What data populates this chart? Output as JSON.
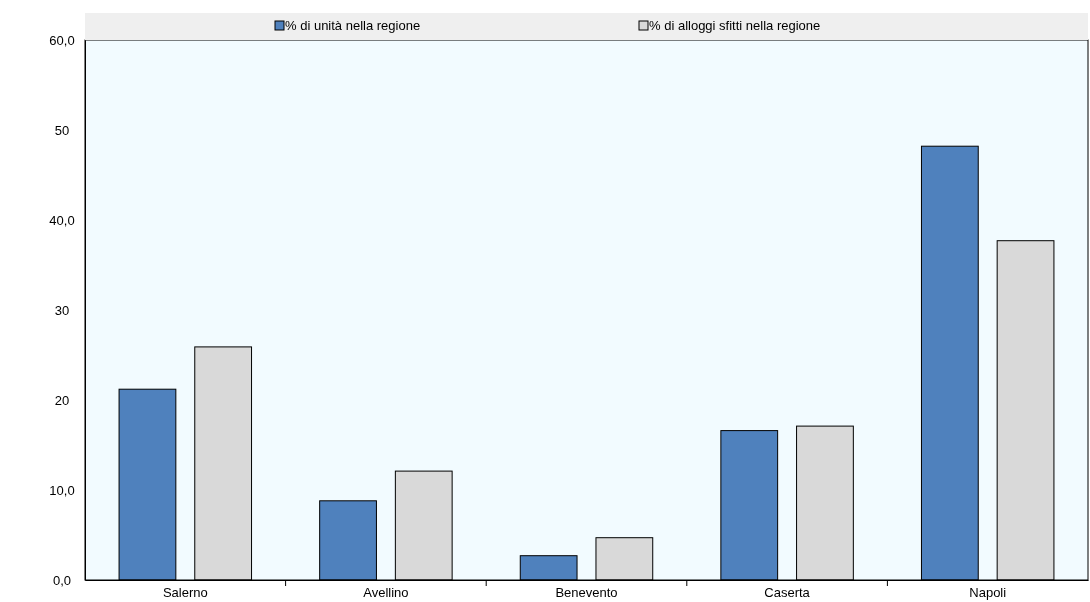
{
  "chart_data": {
    "type": "bar",
    "categories": [
      "Salerno",
      "Avellino",
      "Benevento",
      "Caserta",
      "Napoli"
    ],
    "series": [
      {
        "name": "% di unità nella regione",
        "color": "#4f81bd",
        "values": [
          21.2,
          8.8,
          2.7,
          16.6,
          48.2
        ]
      },
      {
        "name": "% di alloggi sfitti nella regione",
        "color": "#d9d9d9",
        "values": [
          25.9,
          12.1,
          4.7,
          17.1,
          37.7
        ]
      }
    ],
    "ylim": [
      0,
      60
    ],
    "yticks": [
      {
        "value": 0,
        "label": "0,0"
      },
      {
        "value": 10,
        "label": "10,0"
      },
      {
        "value": 20,
        "label": "20"
      },
      {
        "value": 30,
        "label": "30"
      },
      {
        "value": 40,
        "label": "40,0"
      },
      {
        "value": 50,
        "label": "50"
      },
      {
        "value": 60,
        "label": "60,0"
      }
    ],
    "legend": "top",
    "grid": false
  }
}
